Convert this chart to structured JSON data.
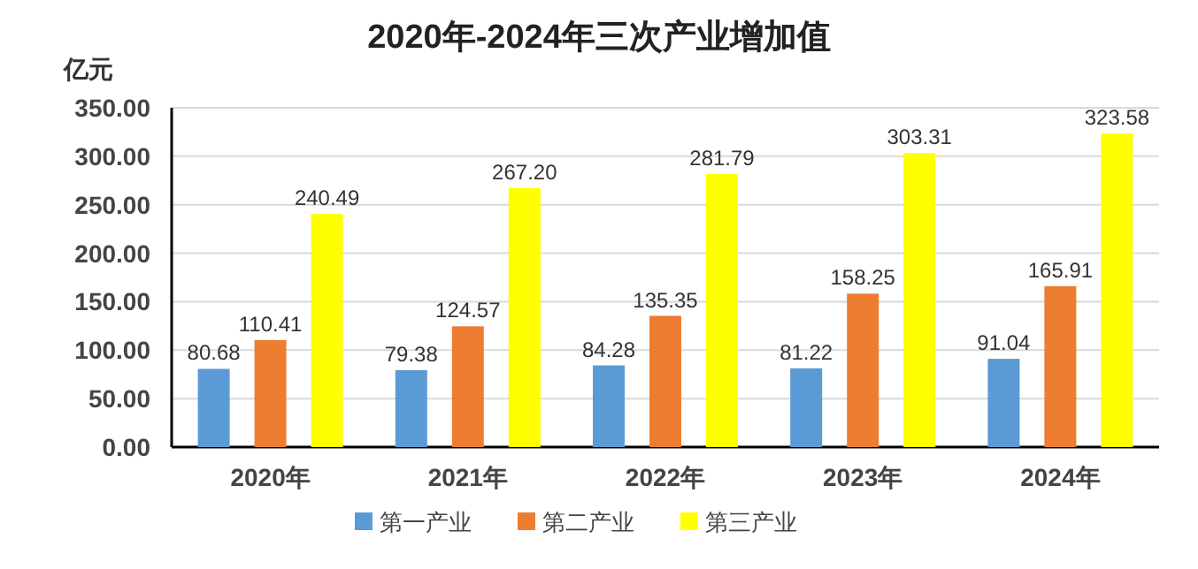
{
  "chart_data": {
    "type": "bar",
    "title": "2020年-2024年三次产业增加值",
    "ylabel": "亿元",
    "categories": [
      "2020年",
      "2021年",
      "2022年",
      "2023年",
      "2024年"
    ],
    "series": [
      {
        "name": "第一产业",
        "color": "#5b9bd5",
        "values": [
          80.68,
          79.38,
          84.28,
          81.22,
          91.04
        ],
        "value_labels": [
          "80.68",
          "79.38",
          "84.28",
          "81.22",
          "91.04"
        ]
      },
      {
        "name": "第二产业",
        "color": "#ed7d31",
        "values": [
          110.41,
          124.57,
          135.35,
          158.25,
          165.91
        ],
        "value_labels": [
          "110.41",
          "124.57",
          "135.35",
          "158.25",
          "165.91"
        ]
      },
      {
        "name": "第三产业",
        "color": "#ffff00",
        "values": [
          240.49,
          267.2,
          281.79,
          303.31,
          323.58
        ],
        "value_labels": [
          "240.49",
          "267.20",
          "281.79",
          "303.31",
          "323.58"
        ]
      }
    ],
    "ylim": [
      0,
      350
    ],
    "yticks": [
      {
        "value": 0,
        "label": "0.00"
      },
      {
        "value": 50,
        "label": "50.00"
      },
      {
        "value": 100,
        "label": "100.00"
      },
      {
        "value": 150,
        "label": "150.00"
      },
      {
        "value": 200,
        "label": "200.00"
      },
      {
        "value": 250,
        "label": "250.00"
      },
      {
        "value": 300,
        "label": "300.00"
      },
      {
        "value": 350,
        "label": "350.00"
      }
    ],
    "grid": "y",
    "legend": "bottom"
  }
}
